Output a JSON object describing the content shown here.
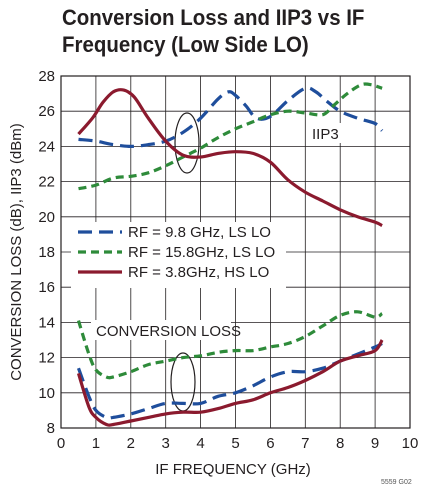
{
  "chart_data": {
    "type": "line",
    "title_line1": "Conversion Loss and IIP3 vs IF",
    "title_line2": "Frequency (Low Side LO)",
    "xlabel": "IF FREQUENCY (GHz)",
    "ylabel": "CONVERSION LOSS (dB), IIP3 (dBm)",
    "xlim": [
      0,
      10
    ],
    "ylim": [
      8,
      28
    ],
    "xticks": [
      "0",
      "1",
      "2",
      "3",
      "4",
      "5",
      "6",
      "7",
      "8",
      "9",
      "10"
    ],
    "yticks": [
      "8",
      "10",
      "12",
      "14",
      "16",
      "18",
      "20",
      "22",
      "24",
      "26",
      "28"
    ],
    "grid": true,
    "legend_position": "left",
    "annotations": {
      "iip3": "IIP3",
      "conversion_loss": "CONVERSION LOSS",
      "figure_code": "5559 G02"
    },
    "series": [
      {
        "name": "RF = 9.8 GHz, LS LO",
        "color": "#1f4e9c",
        "dash": "long-dash",
        "iip3": {
          "x": [
            0.5,
            1.0,
            1.5,
            2.0,
            2.5,
            3.0,
            3.5,
            4.0,
            4.5,
            4.8,
            5.0,
            5.3,
            5.6,
            6.0,
            6.5,
            7.0,
            7.3,
            7.6,
            8.0,
            8.5,
            9.0,
            9.2
          ],
          "y": [
            24.4,
            24.3,
            24.1,
            24.0,
            24.1,
            24.3,
            24.8,
            25.6,
            26.7,
            27.1,
            26.9,
            26.3,
            25.6,
            25.7,
            26.6,
            27.3,
            27.1,
            26.6,
            26.0,
            25.6,
            25.3,
            24.9
          ]
        },
        "conversion_loss": {
          "x": [
            0.5,
            0.8,
            1.0,
            1.3,
            1.5,
            2.0,
            2.5,
            3.0,
            3.5,
            4.0,
            4.5,
            5.0,
            5.5,
            6.0,
            6.5,
            7.0,
            7.5,
            8.0,
            8.5,
            9.0,
            9.2
          ],
          "y": [
            11.4,
            9.8,
            9.0,
            8.6,
            8.6,
            8.8,
            9.1,
            9.4,
            9.4,
            9.4,
            9.8,
            10.0,
            10.4,
            10.9,
            11.2,
            11.2,
            11.4,
            11.8,
            12.2,
            12.6,
            12.8
          ]
        }
      },
      {
        "name": "RF = 15.8GHz, LS LO",
        "color": "#2e8b3a",
        "dash": "short-dash",
        "iip3": {
          "x": [
            0.5,
            1.0,
            1.5,
            2.0,
            2.5,
            3.0,
            3.5,
            4.0,
            4.5,
            5.0,
            5.5,
            6.0,
            6.5,
            7.0,
            7.5,
            7.8,
            8.2,
            8.6,
            8.9,
            9.2
          ],
          "y": [
            21.6,
            21.8,
            22.2,
            22.3,
            22.5,
            22.9,
            23.4,
            23.9,
            24.5,
            25.0,
            25.4,
            25.8,
            26.0,
            25.9,
            25.8,
            26.3,
            27.0,
            27.5,
            27.5,
            27.3
          ]
        },
        "conversion_loss": {
          "x": [
            0.5,
            0.8,
            1.0,
            1.3,
            1.5,
            2.0,
            2.5,
            3.0,
            3.5,
            4.0,
            4.5,
            5.0,
            5.5,
            6.0,
            6.5,
            7.0,
            7.5,
            8.0,
            8.5,
            9.0,
            9.2
          ],
          "y": [
            14.1,
            12.2,
            11.3,
            10.9,
            10.9,
            11.2,
            11.6,
            11.8,
            12.0,
            12.1,
            12.3,
            12.4,
            12.4,
            12.6,
            12.8,
            13.2,
            13.8,
            14.4,
            14.6,
            14.3,
            14.5
          ]
        }
      },
      {
        "name": "RF = 3.8GHz, HS LO",
        "color": "#8b1a2e",
        "dash": "solid",
        "iip3": {
          "x": [
            0.5,
            0.9,
            1.2,
            1.5,
            1.8,
            2.1,
            2.5,
            3.0,
            3.5,
            4.0,
            4.5,
            5.0,
            5.5,
            6.0,
            6.5,
            7.0,
            7.5,
            8.0,
            8.5,
            9.0,
            9.2
          ],
          "y": [
            24.7,
            25.6,
            26.5,
            27.1,
            27.2,
            26.8,
            25.6,
            24.3,
            23.5,
            23.4,
            23.6,
            23.7,
            23.6,
            23.1,
            22.1,
            21.4,
            20.9,
            20.4,
            20.0,
            19.7,
            19.5
          ]
        },
        "conversion_loss": {
          "x": [
            0.5,
            0.8,
            1.0,
            1.3,
            1.5,
            2.0,
            2.5,
            3.0,
            3.5,
            4.0,
            4.5,
            5.0,
            5.5,
            6.0,
            6.5,
            7.0,
            7.5,
            8.0,
            8.5,
            9.0,
            9.2
          ],
          "y": [
            11.1,
            9.2,
            8.6,
            8.2,
            8.2,
            8.4,
            8.6,
            8.8,
            8.9,
            8.9,
            9.1,
            9.4,
            9.6,
            10.0,
            10.3,
            10.7,
            11.2,
            11.8,
            12.1,
            12.4,
            13.0
          ]
        }
      }
    ]
  }
}
